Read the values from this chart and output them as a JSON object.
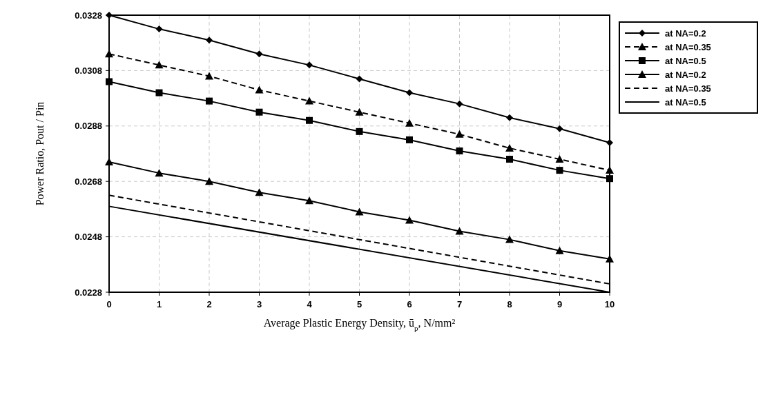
{
  "chart_data": {
    "type": "line",
    "xlabel": "Average Plastic Energy Density, ū$_{p}$, N/mm²",
    "ylabel": "Power Ratio, Pout / Pin",
    "xlim": [
      0,
      10
    ],
    "xticks": [
      0,
      1,
      2,
      3,
      4,
      5,
      6,
      7,
      8,
      9,
      10
    ],
    "ylim": [
      0.0228,
      0.0328
    ],
    "yticks": [
      0.0228,
      0.0248,
      0.0268,
      0.0288,
      0.0308,
      0.0328
    ],
    "grid": true,
    "legend": "right",
    "series": [
      {
        "name": "at NA=0.2",
        "color": "#000000",
        "marker": "diamond",
        "line_style": "solid",
        "x": [
          0,
          1,
          2,
          3,
          4,
          5,
          6,
          7,
          8,
          9,
          10
        ],
        "values": [
          0.0328,
          0.0323,
          0.0319,
          0.0314,
          0.031,
          0.0305,
          0.03,
          0.0296,
          0.0291,
          0.0287,
          0.0282
        ]
      },
      {
        "name": "at NA=0.35",
        "color": "#000000",
        "marker": "triangle",
        "line_style": "dashed",
        "x": [
          0,
          1,
          2,
          3,
          4,
          5,
          6,
          7,
          8,
          9,
          10
        ],
        "values": [
          0.0314,
          0.031,
          0.0306,
          0.0301,
          0.0297,
          0.0293,
          0.0289,
          0.0285,
          0.028,
          0.0276,
          0.0272
        ]
      },
      {
        "name": "at NA=0.5",
        "color": "#000000",
        "marker": "square",
        "line_style": "solid",
        "x": [
          0,
          1,
          2,
          3,
          4,
          5,
          6,
          7,
          8,
          9,
          10
        ],
        "values": [
          0.0304,
          0.03,
          0.0297,
          0.0293,
          0.029,
          0.0286,
          0.0283,
          0.0279,
          0.0276,
          0.0272,
          0.0269
        ]
      },
      {
        "name": "at NA=0.2",
        "color": "#000000",
        "marker": "triangle",
        "line_style": "solid",
        "x": [
          0,
          1,
          2,
          3,
          4,
          5,
          6,
          7,
          8,
          9,
          10
        ],
        "values": [
          0.0275,
          0.0271,
          0.0268,
          0.0264,
          0.0261,
          0.0257,
          0.0254,
          0.025,
          0.0247,
          0.0243,
          0.024
        ]
      },
      {
        "name": "at NA=0.35",
        "color": "#000000",
        "marker": "none",
        "line_style": "dashed",
        "x": [
          0,
          10
        ],
        "values": [
          0.0263,
          0.0231
        ]
      },
      {
        "name": "at NA=0.5",
        "color": "#000000",
        "marker": "none",
        "line_style": "solid",
        "x": [
          0,
          10
        ],
        "values": [
          0.0259,
          0.0228
        ]
      }
    ]
  }
}
